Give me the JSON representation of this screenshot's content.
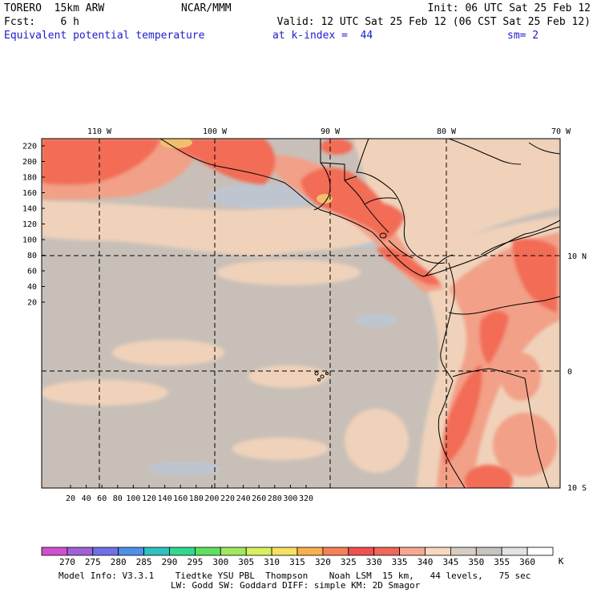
{
  "header": {
    "model": "TORERO  15km ARW",
    "org": "NCAR/MMM",
    "init": "Init: 06 UTC Sat 25 Feb 12",
    "fcst": "Fcst:    6 h",
    "valid": "Valid: 12 UTC Sat 25 Feb 12 (06 CST Sat 25 Feb 12)",
    "field": "Equivalent potential temperature",
    "level": "at k-index =  44",
    "smooth": "sm= 2"
  },
  "map": {
    "lon_labels": [
      "110 W",
      "100 W",
      "90 W",
      "80 W",
      "70 W"
    ],
    "lat_labels": [
      "10 N",
      "0",
      "10 S"
    ],
    "y_ticks": [
      "220",
      "200",
      "180",
      "160",
      "140",
      "120",
      "100",
      "80",
      "60",
      "40",
      "20"
    ],
    "x_ticks": [
      "20",
      "40",
      "60",
      "80",
      "100",
      "120",
      "140",
      "160",
      "180",
      "200",
      "220",
      "240",
      "260",
      "280",
      "300",
      "320"
    ],
    "colors": {
      "background": "#c8c0b8",
      "warm1": "#f0d2ba",
      "warm2": "#f2a088",
      "warm3": "#f26c56",
      "hot": "#f0c070",
      "cool": "#bfc5cf"
    }
  },
  "colorbar": {
    "labels": [
      "270",
      "275",
      "280",
      "285",
      "290",
      "295",
      "300",
      "305",
      "310",
      "315",
      "320",
      "325",
      "330",
      "335",
      "340",
      "345",
      "350",
      "355",
      "360"
    ],
    "unit": "K",
    "colors": [
      "#d050d0",
      "#a060d8",
      "#7070e8",
      "#5090e8",
      "#30c0c0",
      "#30d890",
      "#60e060",
      "#a0e860",
      "#d8f060",
      "#f8e060",
      "#f8b050",
      "#f88058",
      "#f05050",
      "#f06858",
      "#f8a890",
      "#f8d8c0",
      "#d8cec4",
      "#c8c4c0",
      "#e4e4e4",
      "#ffffff"
    ]
  },
  "footer": {
    "line1": "Model Info: V3.3.1    Tiedtke YSU PBL  Thompson    Noah LSM  15 km,   44 levels,   75 sec",
    "line2": "LW: Godd SW: Goddard DIFF: simple KM: 2D Smagor"
  }
}
